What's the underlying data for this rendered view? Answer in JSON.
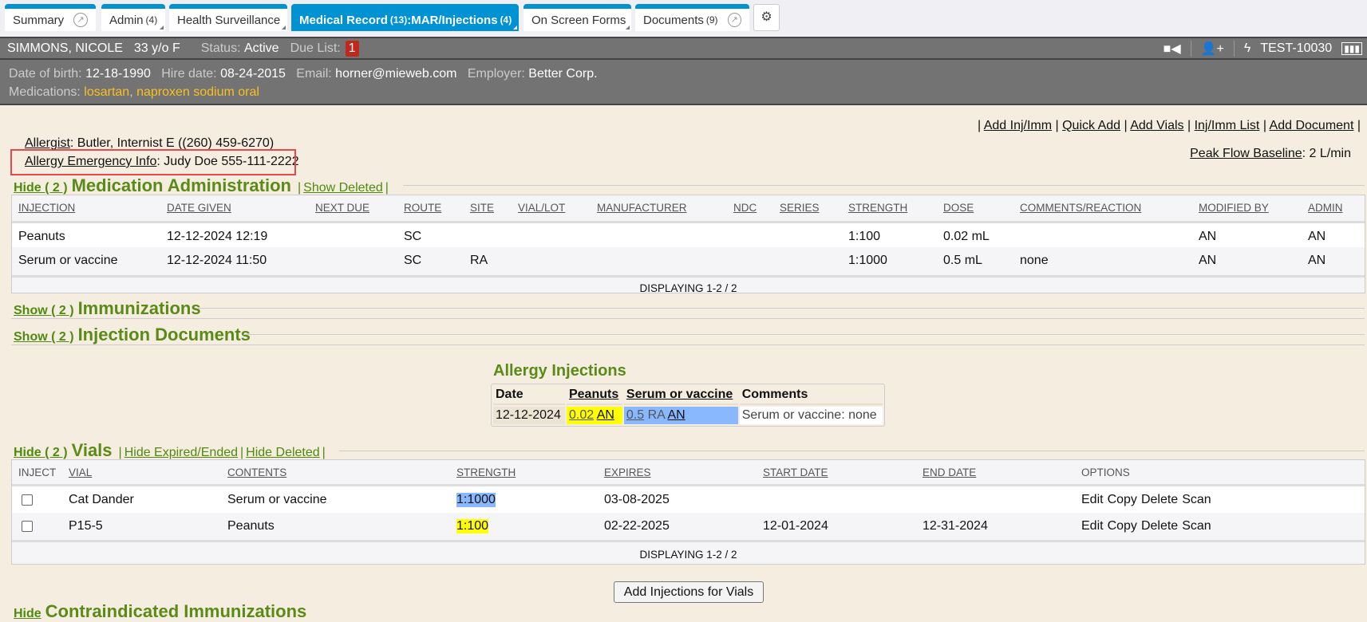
{
  "tabs": [
    {
      "label": "Summary",
      "count": "",
      "ext": true,
      "active": false
    },
    {
      "label": "Admin",
      "count": "(4)",
      "active": false
    },
    {
      "label": "Health Surveillance",
      "count": "",
      "active": false
    },
    {
      "label": "Medical Record",
      "count": "(13)",
      "label2": ":MAR/Injections",
      "count2": "(4)",
      "active": true
    },
    {
      "label": "On Screen Forms",
      "count": "",
      "active": false
    },
    {
      "label": "Documents",
      "count": "(9)",
      "ext": true,
      "active": false
    }
  ],
  "patient": {
    "name": "SIMMONS, NICOLE",
    "age": "33 y/o F",
    "status_label": "Status:",
    "status": "Active",
    "due_label": "Due List:",
    "due_count": "1",
    "id": "TEST-10030",
    "dob_label": "Date of birth:",
    "dob": "12-18-1990",
    "hire_label": "Hire date:",
    "hire": "08-24-2015",
    "email_label": "Email:",
    "email": "horner@mieweb.com",
    "employer_label": "Employer:",
    "employer": "Better Corp.",
    "meds_label": "Medications:",
    "meds": [
      "losartan",
      "naproxen sodium oral"
    ]
  },
  "actions": [
    "Add Inj/Imm",
    "Quick Add",
    "Add Vials",
    "Inj/Imm List",
    "Add Document"
  ],
  "peak": {
    "label": "Peak Flow Baseline",
    "value": ": 2 L/min"
  },
  "allergist": {
    "label": "Allergist",
    "value": ": Butler, Internist E  ((260) 459-6270)"
  },
  "emergency": {
    "label": "Allergy Emergency Info",
    "value": ": Judy Doe 555-111-2222"
  },
  "med_admin": {
    "toggle": "Hide ( 2 )",
    "title": "Medication Administration",
    "show_deleted": "Show Deleted",
    "columns": [
      "INJECTION",
      "DATE GIVEN",
      "NEXT DUE",
      "ROUTE",
      "SITE",
      "VIAL/LOT",
      "MANUFACTURER",
      "NDC",
      "SERIES",
      "STRENGTH",
      "DOSE",
      "COMMENTS/REACTION",
      "MODIFIED BY",
      "ADMIN"
    ],
    "rows": [
      [
        "Peanuts",
        "12-12-2024 12:19",
        "",
        "SC",
        "",
        "",
        "",
        "",
        "",
        "1:100",
        "0.02 mL",
        "",
        "AN",
        "AN"
      ],
      [
        "Serum or vaccine",
        "12-12-2024 11:50",
        "",
        "SC",
        "RA",
        "",
        "",
        "",
        "",
        "1:1000",
        "0.5 mL",
        "none",
        "AN",
        "AN"
      ]
    ],
    "displaying": "DISPLAYING 1-2 / 2"
  },
  "immunizations": {
    "toggle": "Show ( 2 )",
    "title": "Immunizations"
  },
  "inj_docs": {
    "toggle": "Show ( 2 )",
    "title": "Injection Documents"
  },
  "allergy_injections": {
    "title": "Allergy Injections",
    "headers": [
      "Date",
      "Peanuts",
      "Serum or vaccine",
      "Comments"
    ],
    "row": {
      "date": "12-12-2024",
      "peanuts_dose": "0.02",
      "peanuts_by": "AN",
      "serum_dose": "0.5",
      "serum_site": "RA",
      "serum_by": "AN",
      "comments": "Serum or vaccine: none"
    }
  },
  "vials": {
    "toggle": "Hide ( 2 )",
    "title": "Vials",
    "hide_expired": "Hide Expired/Ended",
    "hide_deleted": "Hide Deleted",
    "columns": [
      "INJECT",
      "VIAL",
      "CONTENTS",
      "STRENGTH",
      "EXPIRES",
      "START DATE",
      "END DATE",
      "OPTIONS"
    ],
    "rows": [
      {
        "vial": "Cat Dander",
        "contents": "Serum or vaccine",
        "strength": "1:1000",
        "expires": "03-08-2025",
        "start": "",
        "end": "",
        "highlight": "#8ab8ff"
      },
      {
        "vial": "P15-5",
        "contents": "Peanuts",
        "strength": "1:100",
        "expires": "02-22-2025",
        "start": "12-01-2024",
        "end": "12-31-2024",
        "highlight": "#ffff00"
      }
    ],
    "options": [
      "Edit",
      "Copy",
      "Delete",
      "Scan"
    ],
    "displaying": "DISPLAYING 1-2 / 2"
  },
  "add_injections_button": "Add Injections for Vials",
  "contraindicated": {
    "toggle": "Hide",
    "title": "Contraindicated Immunizations"
  },
  "colors": {
    "tab_blue": "#0092d2",
    "header_gray": "#737373",
    "content_bg": "#f5eddf",
    "section_green": "#5a8a18",
    "badge_red": "#c0281c",
    "med_yellow": "#f8c020"
  }
}
